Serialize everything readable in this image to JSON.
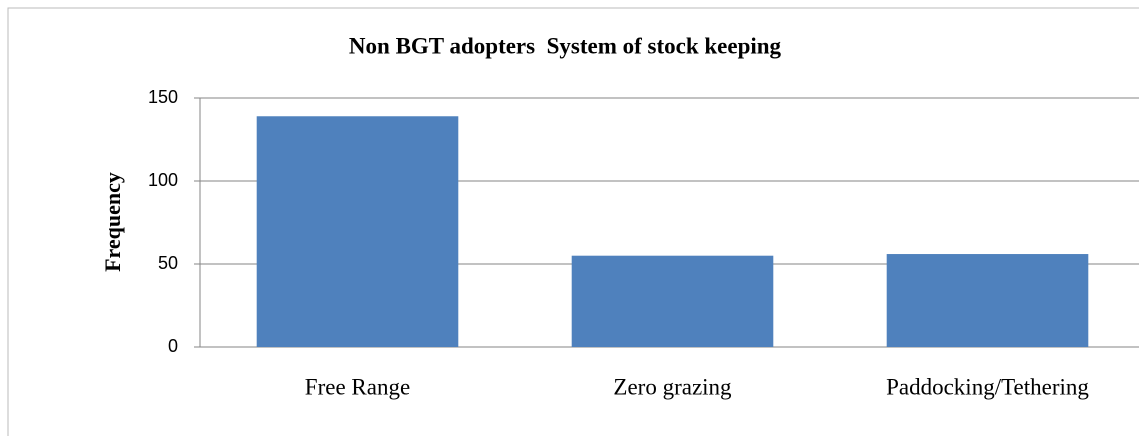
{
  "chart_data": {
    "type": "bar",
    "title": "Non BGT adopters  System of stock keeping",
    "y_label": "Frequency",
    "categories": [
      "Free Range",
      "Zero grazing",
      "Paddocking/Tethering"
    ],
    "values": [
      139,
      55,
      56
    ],
    "color": "#4f81bd",
    "ylim": [
      0,
      150
    ],
    "yticks": [
      0,
      50,
      100,
      150
    ],
    "grid": true
  }
}
